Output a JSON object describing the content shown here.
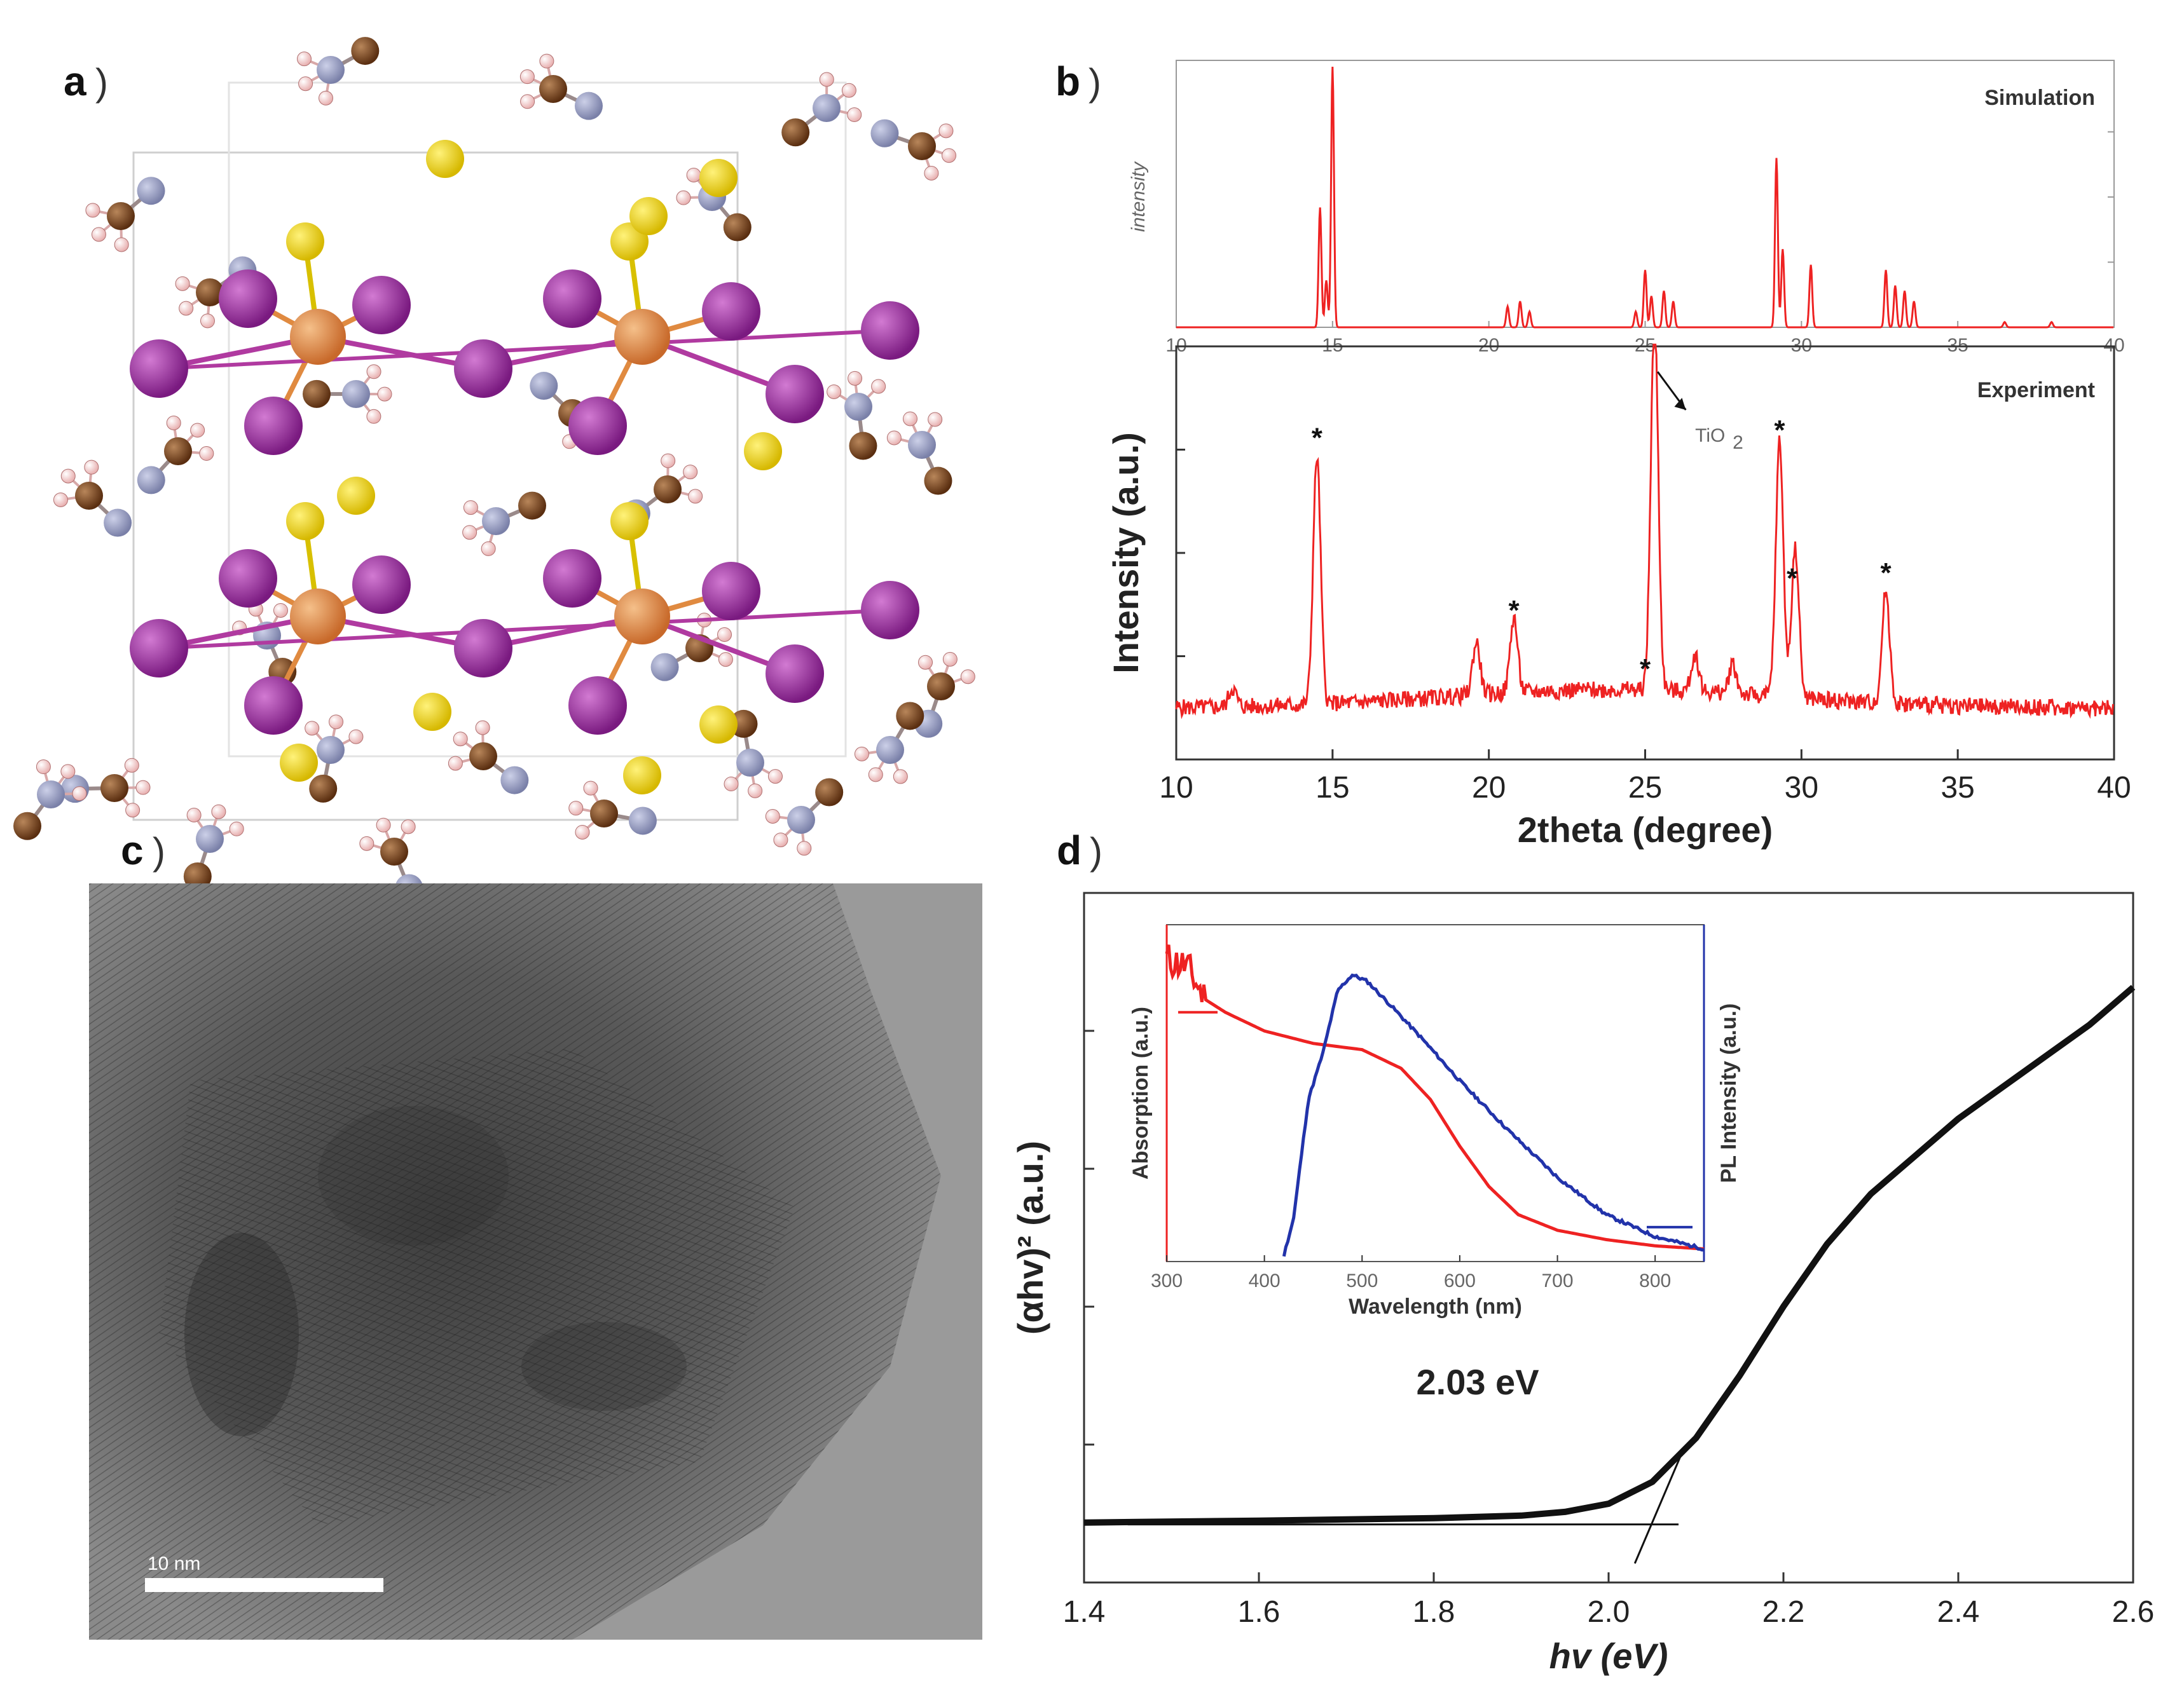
{
  "panels": {
    "a": {
      "label": "a",
      "paren": ")"
    },
    "b": {
      "label": "b",
      "paren": ")"
    },
    "c": {
      "label": "c",
      "paren": ")"
    },
    "d": {
      "label": "d",
      "paren": ")"
    }
  },
  "panel_c": {
    "scale_bar_label": "10 nm"
  },
  "chart_data": [
    {
      "id": "b-simulation",
      "type": "line",
      "title": "Simulation",
      "ylabel": "intensity",
      "xlim": [
        10,
        40
      ],
      "xticks": [
        10,
        15,
        20,
        25,
        30,
        35,
        40
      ],
      "ylim": [
        0,
        1
      ],
      "color": "#ee2222",
      "peaks": [
        [
          14.6,
          0.46
        ],
        [
          14.8,
          0.18
        ],
        [
          15.0,
          1.0
        ],
        [
          20.6,
          0.08
        ],
        [
          21.0,
          0.1
        ],
        [
          21.3,
          0.06
        ],
        [
          24.7,
          0.06
        ],
        [
          25.0,
          0.22
        ],
        [
          25.2,
          0.12
        ],
        [
          25.6,
          0.14
        ],
        [
          25.9,
          0.1
        ],
        [
          29.2,
          0.65
        ],
        [
          29.4,
          0.3
        ],
        [
          30.3,
          0.24
        ],
        [
          32.7,
          0.22
        ],
        [
          33.0,
          0.16
        ],
        [
          33.3,
          0.14
        ],
        [
          33.6,
          0.1
        ],
        [
          36.5,
          0.02
        ],
        [
          38.0,
          0.02
        ]
      ]
    },
    {
      "id": "b-experiment",
      "type": "line",
      "title": "Experiment",
      "xlabel": "2theta (degree)",
      "ylabel": "Intensity (a.u.)",
      "xlim": [
        10,
        40
      ],
      "xticks": [
        10,
        15,
        20,
        25,
        30,
        35,
        40
      ],
      "ylim": [
        0,
        1
      ],
      "color": "#ee2222",
      "annotation": "TiO",
      "annotation_sub": "2",
      "star_marker": "*",
      "starred_peaks_x": [
        14.5,
        20.8,
        25.0,
        29.3,
        29.7,
        32.7
      ],
      "peaks": [
        [
          11.8,
          0.05
        ],
        [
          14.5,
          0.66
        ],
        [
          19.6,
          0.14
        ],
        [
          20.8,
          0.2
        ],
        [
          25.3,
          1.0
        ],
        [
          26.6,
          0.1
        ],
        [
          27.8,
          0.08
        ],
        [
          29.3,
          0.68
        ],
        [
          29.8,
          0.4
        ],
        [
          32.7,
          0.3
        ]
      ]
    },
    {
      "id": "d-tauc",
      "type": "line",
      "xlabel": "hv (eV)",
      "ylabel": "(αhv)² (a.u.)",
      "xlim": [
        1.4,
        2.6
      ],
      "xticks": [
        1.4,
        1.6,
        1.8,
        2.0,
        2.2,
        2.4,
        2.6
      ],
      "ylim": [
        0,
        1
      ],
      "color": "#111111",
      "annotation": "2.03 eV",
      "bandgap_eV": 2.03,
      "points": [
        [
          1.4,
          0.045
        ],
        [
          1.6,
          0.048
        ],
        [
          1.8,
          0.052
        ],
        [
          1.9,
          0.056
        ],
        [
          1.95,
          0.062
        ],
        [
          2.0,
          0.075
        ],
        [
          2.05,
          0.11
        ],
        [
          2.1,
          0.18
        ],
        [
          2.15,
          0.28
        ],
        [
          2.2,
          0.39
        ],
        [
          2.25,
          0.49
        ],
        [
          2.3,
          0.57
        ],
        [
          2.35,
          0.63
        ],
        [
          2.4,
          0.69
        ],
        [
          2.45,
          0.74
        ],
        [
          2.5,
          0.79
        ],
        [
          2.55,
          0.84
        ],
        [
          2.6,
          0.9
        ]
      ],
      "tangent": [
        [
          2.03,
          0.0
        ],
        [
          2.085,
          0.16
        ]
      ]
    },
    {
      "id": "d-inset",
      "type": "line",
      "xlabel": "Wavelength (nm)",
      "ylabel_left": "Absorption (a.u.)",
      "ylabel_right": "PL Intensity (a.u.)",
      "xlim": [
        300,
        850
      ],
      "xticks": [
        300,
        400,
        500,
        600,
        700,
        800
      ],
      "xtick_labels": [
        "300",
        "400",
        "500",
        "600",
        "700",
        "800"
      ],
      "series": [
        {
          "name": "Absorption",
          "color": "#ee2222",
          "points": [
            [
              300,
              0.95
            ],
            [
              320,
              0.93
            ],
            [
              340,
              0.82
            ],
            [
              360,
              0.78
            ],
            [
              380,
              0.75
            ],
            [
              400,
              0.72
            ],
            [
              450,
              0.68
            ],
            [
              500,
              0.66
            ],
            [
              540,
              0.6
            ],
            [
              570,
              0.5
            ],
            [
              600,
              0.35
            ],
            [
              630,
              0.22
            ],
            [
              660,
              0.13
            ],
            [
              700,
              0.08
            ],
            [
              750,
              0.05
            ],
            [
              800,
              0.03
            ],
            [
              850,
              0.02
            ]
          ]
        },
        {
          "name": "PL Intensity",
          "color": "#2233aa",
          "points": [
            [
              420,
              0.0
            ],
            [
              430,
              0.12
            ],
            [
              445,
              0.5
            ],
            [
              460,
              0.65
            ],
            [
              475,
              0.85
            ],
            [
              490,
              0.9
            ],
            [
              505,
              0.88
            ],
            [
              530,
              0.8
            ],
            [
              560,
              0.7
            ],
            [
              600,
              0.56
            ],
            [
              650,
              0.4
            ],
            [
              700,
              0.25
            ],
            [
              750,
              0.13
            ],
            [
              800,
              0.06
            ],
            [
              850,
              0.02
            ]
          ]
        }
      ]
    }
  ]
}
